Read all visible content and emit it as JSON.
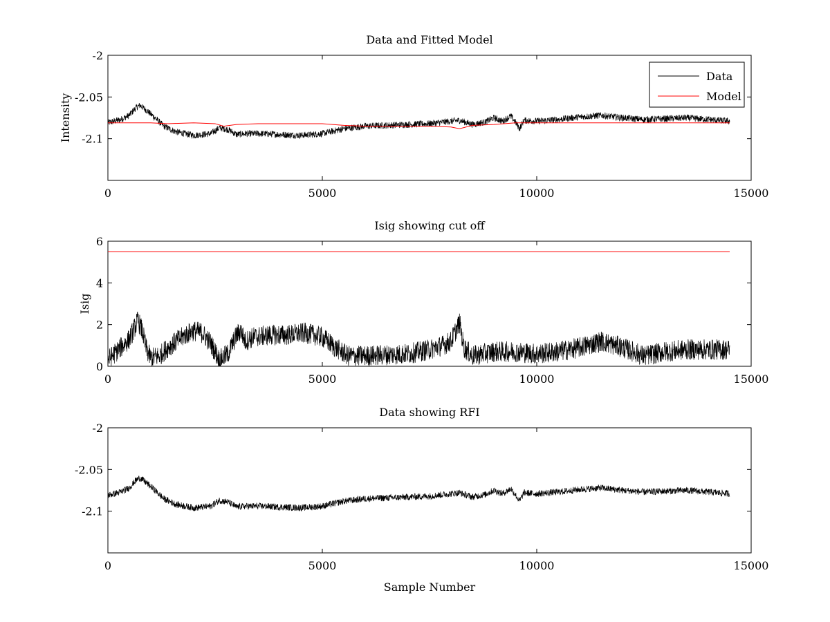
{
  "chart_data": [
    {
      "type": "line",
      "title": "Data and Fitted Model",
      "xlabel": "",
      "ylabel": "Intensity",
      "xlim": [
        0,
        15000
      ],
      "ylim": [
        -2.15,
        -2.0
      ],
      "xticks": [
        0,
        5000,
        10000,
        15000
      ],
      "xtick_labels": [
        "0",
        "5000",
        "10000",
        "15000"
      ],
      "yticks": [
        -2.1,
        -2.05,
        -2.0
      ],
      "ytick_labels": [
        "-2.1",
        "-2.05",
        "-2"
      ],
      "grid": false,
      "legend_position": "top-right",
      "series": [
        {
          "name": "Data",
          "color": "#000000",
          "noise": 0.004,
          "x": [
            0,
            300,
            500,
            650,
            750,
            900,
            1100,
            1300,
            1600,
            2000,
            2400,
            2600,
            2800,
            3000,
            3200,
            3600,
            4000,
            4500,
            5000,
            5500,
            6000,
            6500,
            7000,
            7500,
            8000,
            8200,
            8500,
            8800,
            9000,
            9200,
            9400,
            9500,
            9600,
            9700,
            10000,
            10500,
            11000,
            11500,
            12000,
            12500,
            13000,
            13500,
            14000,
            14500
          ],
          "values": [
            -2.081,
            -2.077,
            -2.072,
            -2.063,
            -2.06,
            -2.066,
            -2.075,
            -2.085,
            -2.092,
            -2.096,
            -2.094,
            -2.087,
            -2.089,
            -2.095,
            -2.094,
            -2.094,
            -2.095,
            -2.096,
            -2.094,
            -2.088,
            -2.085,
            -2.084,
            -2.083,
            -2.082,
            -2.079,
            -2.078,
            -2.083,
            -2.08,
            -2.075,
            -2.079,
            -2.073,
            -2.08,
            -2.088,
            -2.078,
            -2.079,
            -2.077,
            -2.074,
            -2.072,
            -2.075,
            -2.077,
            -2.076,
            -2.075,
            -2.077,
            -2.079
          ]
        },
        {
          "name": "Model",
          "color": "#ff0000",
          "noise": 0,
          "x": [
            0,
            1000,
            1400,
            2000,
            2500,
            2700,
            3000,
            3500,
            4000,
            5000,
            5500,
            6000,
            7000,
            7500,
            8000,
            8200,
            8500,
            9000,
            9500,
            10000,
            11000,
            12000,
            13000,
            14500
          ],
          "values": [
            -2.081,
            -2.081,
            -2.082,
            -2.081,
            -2.082,
            -2.085,
            -2.083,
            -2.082,
            -2.082,
            -2.082,
            -2.084,
            -2.085,
            -2.085,
            -2.085,
            -2.086,
            -2.088,
            -2.084,
            -2.083,
            -2.081,
            -2.081,
            -2.081,
            -2.081,
            -2.081,
            -2.081
          ]
        }
      ]
    },
    {
      "type": "line",
      "title": "Isig showing cut off",
      "xlabel": "",
      "ylabel": "Isig",
      "xlim": [
        0,
        15000
      ],
      "ylim": [
        0,
        6
      ],
      "xticks": [
        0,
        5000,
        10000,
        15000
      ],
      "xtick_labels": [
        "0",
        "5000",
        "10000",
        "15000"
      ],
      "yticks": [
        0,
        2,
        4,
        6
      ],
      "ytick_labels": [
        "0",
        "2",
        "4",
        "6"
      ],
      "grid": false,
      "series": [
        {
          "color": "#000000",
          "noise": 0.5,
          "clip_min": 0,
          "x": [
            0,
            200,
            500,
            700,
            800,
            900,
            1000,
            1200,
            1400,
            1800,
            2000,
            2200,
            2400,
            2600,
            2800,
            3000,
            3100,
            3200,
            3400,
            3800,
            4200,
            4600,
            5000,
            5300,
            5600,
            6000,
            7000,
            7500,
            7800,
            8000,
            8200,
            8300,
            8500,
            9000,
            9500,
            10000,
            10500,
            11000,
            11500,
            12000,
            12500,
            13000,
            13500,
            14000,
            14500
          ],
          "values": [
            0.3,
            0.7,
            1.3,
            2.2,
            1.7,
            0.8,
            0.4,
            0.5,
            0.9,
            1.5,
            1.7,
            1.6,
            1.1,
            0.3,
            0.6,
            1.5,
            1.7,
            1.2,
            1.4,
            1.5,
            1.5,
            1.6,
            1.4,
            0.9,
            0.5,
            0.5,
            0.6,
            0.8,
            1.0,
            1.2,
            2.1,
            0.9,
            0.5,
            0.7,
            0.7,
            0.6,
            0.7,
            0.9,
            1.2,
            0.9,
            0.5,
            0.7,
            0.8,
            0.8,
            0.8
          ]
        },
        {
          "color": "#ff0000",
          "noise": 0,
          "x": [
            0,
            14500
          ],
          "values": [
            5.5,
            5.5
          ]
        }
      ]
    },
    {
      "type": "line",
      "title": "Data showing RFI",
      "xlabel": "Sample Number",
      "ylabel": "",
      "xlim": [
        0,
        15000
      ],
      "ylim": [
        -2.15,
        -2.0
      ],
      "xticks": [
        0,
        5000,
        10000,
        15000
      ],
      "xtick_labels": [
        "0",
        "5000",
        "10000",
        "15000"
      ],
      "yticks": [
        -2.1,
        -2.05,
        -2.0
      ],
      "ytick_labels": [
        "-2.1",
        "-2.05",
        "-2"
      ],
      "grid": false,
      "series": [
        {
          "color": "#000000",
          "noise": 0.004,
          "x": [
            0,
            300,
            500,
            650,
            750,
            900,
            1100,
            1300,
            1600,
            2000,
            2400,
            2600,
            2800,
            3000,
            3200,
            3600,
            4000,
            4500,
            5000,
            5500,
            6000,
            6500,
            7000,
            7500,
            8000,
            8200,
            8500,
            8800,
            9000,
            9200,
            9400,
            9500,
            9600,
            9700,
            10000,
            10500,
            11000,
            11500,
            12000,
            12500,
            13000,
            13500,
            14000,
            14500
          ],
          "values": [
            -2.081,
            -2.077,
            -2.072,
            -2.063,
            -2.06,
            -2.066,
            -2.075,
            -2.085,
            -2.092,
            -2.096,
            -2.094,
            -2.087,
            -2.089,
            -2.095,
            -2.094,
            -2.094,
            -2.095,
            -2.096,
            -2.094,
            -2.088,
            -2.085,
            -2.084,
            -2.083,
            -2.082,
            -2.079,
            -2.078,
            -2.083,
            -2.08,
            -2.075,
            -2.079,
            -2.073,
            -2.08,
            -2.088,
            -2.078,
            -2.079,
            -2.077,
            -2.074,
            -2.072,
            -2.075,
            -2.077,
            -2.076,
            -2.075,
            -2.077,
            -2.079
          ]
        }
      ]
    }
  ]
}
